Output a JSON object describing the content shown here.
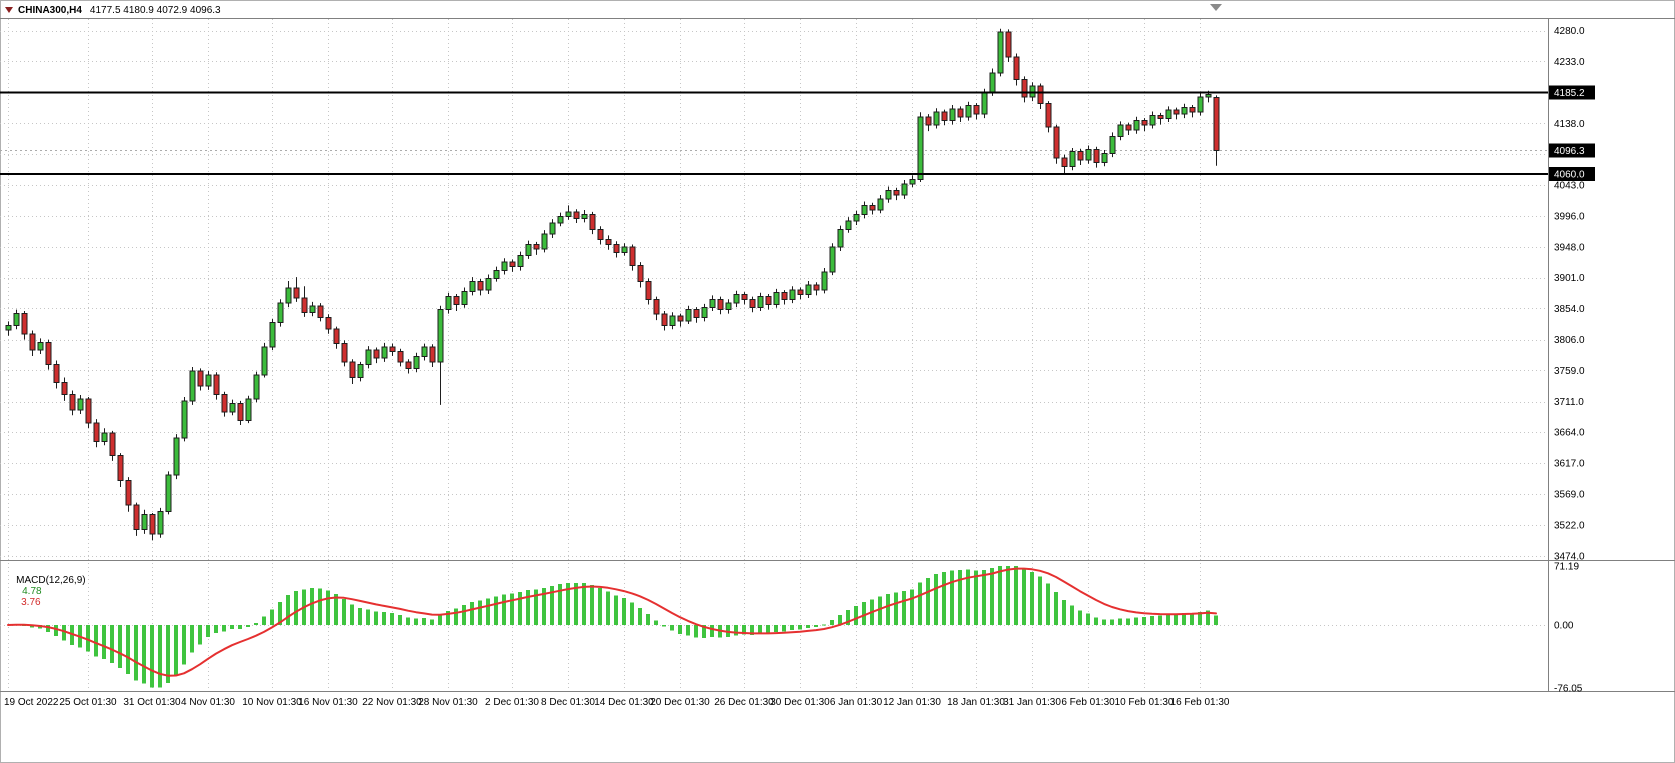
{
  "header": {
    "symbol": "CHINA300,H4",
    "ohlc": "4177.5 4180.9 4072.9 4096.3"
  },
  "colors": {
    "up": "#3CBC3C",
    "down": "#CE2F2F",
    "outline": "#1E1E1E",
    "grid": "#C6C6C6",
    "hist": "#3FC43F",
    "signal": "#E53030",
    "hline": "#000000",
    "axis_line": "#808080",
    "bid_line": "#ABABAB",
    "tag_bg": "#000000",
    "tag_text": "#FFFFFF",
    "text": "#000000",
    "shift_marker": "#8A8A8A"
  },
  "chart_data": {
    "type": "candlestick",
    "title": "CHINA300,H4",
    "symbol": "CHINA300",
    "timeframe": "H4",
    "current_ohlc": {
      "open": 4177.5,
      "high": 4180.9,
      "low": 4072.9,
      "close": 4096.3
    },
    "candles": [
      [
        3821,
        3834,
        3812,
        3828
      ],
      [
        3828,
        3852,
        3822,
        3846
      ],
      [
        3846,
        3850,
        3806,
        3815
      ],
      [
        3815,
        3820,
        3781,
        3790
      ],
      [
        3790,
        3808,
        3784,
        3802
      ],
      [
        3802,
        3806,
        3760,
        3768
      ],
      [
        3768,
        3774,
        3731,
        3740
      ],
      [
        3740,
        3748,
        3712,
        3722
      ],
      [
        3722,
        3728,
        3690,
        3698
      ],
      [
        3698,
        3721,
        3692,
        3715
      ],
      [
        3715,
        3718,
        3670,
        3678
      ],
      [
        3678,
        3684,
        3641,
        3650
      ],
      [
        3650,
        3670,
        3644,
        3663
      ],
      [
        3663,
        3666,
        3620,
        3628
      ],
      [
        3628,
        3632,
        3580,
        3590
      ],
      [
        3590,
        3595,
        3542,
        3552
      ],
      [
        3552,
        3556,
        3505,
        3515
      ],
      [
        3515,
        3545,
        3508,
        3538
      ],
      [
        3538,
        3540,
        3498,
        3508
      ],
      [
        3508,
        3548,
        3502,
        3542
      ],
      [
        3542,
        3604,
        3538,
        3598
      ],
      [
        3598,
        3661,
        3592,
        3655
      ],
      [
        3655,
        3718,
        3650,
        3712
      ],
      [
        3712,
        3764,
        3706,
        3758
      ],
      [
        3758,
        3762,
        3728,
        3735
      ],
      [
        3735,
        3758,
        3729,
        3752
      ],
      [
        3752,
        3756,
        3714,
        3722
      ],
      [
        3722,
        3726,
        3688,
        3695
      ],
      [
        3695,
        3714,
        3690,
        3708
      ],
      [
        3708,
        3712,
        3675,
        3682
      ],
      [
        3682,
        3720,
        3678,
        3715
      ],
      [
        3715,
        3757,
        3710,
        3752
      ],
      [
        3752,
        3801,
        3748,
        3795
      ],
      [
        3795,
        3838,
        3790,
        3832
      ],
      [
        3832,
        3868,
        3826,
        3862
      ],
      [
        3862,
        3896,
        3856,
        3885
      ],
      [
        3885,
        3902,
        3864,
        3870
      ],
      [
        3870,
        3888,
        3841,
        3848
      ],
      [
        3848,
        3864,
        3842,
        3858
      ],
      [
        3858,
        3862,
        3834,
        3840
      ],
      [
        3840,
        3845,
        3815,
        3822
      ],
      [
        3822,
        3826,
        3792,
        3800
      ],
      [
        3800,
        3805,
        3765,
        3772
      ],
      [
        3772,
        3776,
        3738,
        3748
      ],
      [
        3748,
        3772,
        3742,
        3768
      ],
      [
        3768,
        3796,
        3762,
        3790
      ],
      [
        3790,
        3794,
        3770,
        3778
      ],
      [
        3778,
        3801,
        3772,
        3795
      ],
      [
        3795,
        3800,
        3781,
        3788
      ],
      [
        3788,
        3792,
        3765,
        3772
      ],
      [
        3772,
        3776,
        3754,
        3762
      ],
      [
        3762,
        3786,
        3756,
        3780
      ],
      [
        3780,
        3800,
        3774,
        3795
      ],
      [
        3795,
        3799,
        3764,
        3772
      ],
      [
        3772,
        3858,
        3706,
        3852
      ],
      [
        3852,
        3878,
        3846,
        3872
      ],
      [
        3872,
        3876,
        3850,
        3860
      ],
      [
        3860,
        3886,
        3855,
        3880
      ],
      [
        3880,
        3902,
        3874,
        3895
      ],
      [
        3895,
        3899,
        3874,
        3882
      ],
      [
        3882,
        3906,
        3876,
        3900
      ],
      [
        3900,
        3918,
        3895,
        3912
      ],
      [
        3912,
        3931,
        3906,
        3925
      ],
      [
        3925,
        3929,
        3910,
        3918
      ],
      [
        3918,
        3941,
        3912,
        3935
      ],
      [
        3935,
        3958,
        3930,
        3952
      ],
      [
        3952,
        3956,
        3936,
        3945
      ],
      [
        3945,
        3974,
        3940,
        3968
      ],
      [
        3968,
        3991,
        3962,
        3985
      ],
      [
        3985,
        4001,
        3980,
        3995
      ],
      [
        3995,
        4012,
        3990,
        4002
      ],
      [
        4002,
        4006,
        3985,
        3992
      ],
      [
        3992,
        4005,
        3986,
        3998
      ],
      [
        3998,
        4002,
        3968,
        3975
      ],
      [
        3975,
        3980,
        3952,
        3960
      ],
      [
        3960,
        3966,
        3944,
        3952
      ],
      [
        3952,
        3957,
        3932,
        3940
      ],
      [
        3940,
        3954,
        3935,
        3948
      ],
      [
        3948,
        3952,
        3912,
        3920
      ],
      [
        3920,
        3925,
        3886,
        3895
      ],
      [
        3895,
        3900,
        3860,
        3868
      ],
      [
        3868,
        3872,
        3836,
        3845
      ],
      [
        3845,
        3850,
        3820,
        3828
      ],
      [
        3828,
        3848,
        3822,
        3842
      ],
      [
        3842,
        3846,
        3826,
        3835
      ],
      [
        3835,
        3858,
        3830,
        3852
      ],
      [
        3852,
        3856,
        3832,
        3840
      ],
      [
        3840,
        3861,
        3834,
        3855
      ],
      [
        3855,
        3874,
        3850,
        3868
      ],
      [
        3868,
        3872,
        3845,
        3852
      ],
      [
        3852,
        3868,
        3846,
        3862
      ],
      [
        3862,
        3881,
        3856,
        3875
      ],
      [
        3875,
        3879,
        3860,
        3868
      ],
      [
        3868,
        3872,
        3848,
        3855
      ],
      [
        3855,
        3878,
        3850,
        3872
      ],
      [
        3872,
        3876,
        3852,
        3860
      ],
      [
        3860,
        3884,
        3855,
        3878
      ],
      [
        3878,
        3882,
        3860,
        3868
      ],
      [
        3868,
        3888,
        3862,
        3882
      ],
      [
        3882,
        3886,
        3868,
        3875
      ],
      [
        3875,
        3896,
        3870,
        3890
      ],
      [
        3890,
        3894,
        3874,
        3882
      ],
      [
        3882,
        3916,
        3877,
        3910
      ],
      [
        3910,
        3954,
        3905,
        3948
      ],
      [
        3948,
        3981,
        3942,
        3975
      ],
      [
        3975,
        3994,
        3970,
        3988
      ],
      [
        3988,
        4004,
        3982,
        3998
      ],
      [
        3998,
        4018,
        3992,
        4012
      ],
      [
        4012,
        4016,
        3998,
        4005
      ],
      [
        4005,
        4028,
        4000,
        4022
      ],
      [
        4022,
        4041,
        4016,
        4035
      ],
      [
        4035,
        4039,
        4020,
        4028
      ],
      [
        4028,
        4051,
        4022,
        4045
      ],
      [
        4045,
        4058,
        4040,
        4052
      ],
      [
        4052,
        4155,
        4048,
        4148
      ],
      [
        4148,
        4152,
        4126,
        4135
      ],
      [
        4135,
        4161,
        4130,
        4155
      ],
      [
        4155,
        4159,
        4135,
        4142
      ],
      [
        4142,
        4166,
        4136,
        4160
      ],
      [
        4160,
        4164,
        4140,
        4148
      ],
      [
        4148,
        4171,
        4142,
        4165
      ],
      [
        4165,
        4169,
        4144,
        4152
      ],
      [
        4152,
        4191,
        4146,
        4185
      ],
      [
        4185,
        4222,
        4180,
        4215
      ],
      [
        4215,
        4283,
        4210,
        4278
      ],
      [
        4278,
        4282,
        4232,
        4240
      ],
      [
        4240,
        4245,
        4196,
        4205
      ],
      [
        4205,
        4210,
        4170,
        4178
      ],
      [
        4178,
        4201,
        4172,
        4195
      ],
      [
        4195,
        4199,
        4160,
        4168
      ],
      [
        4168,
        4172,
        4124,
        4132
      ],
      [
        4132,
        4136,
        4076,
        4085
      ],
      [
        4085,
        4090,
        4061,
        4072
      ],
      [
        4072,
        4100,
        4066,
        4095
      ],
      [
        4095,
        4099,
        4074,
        4082
      ],
      [
        4082,
        4104,
        4076,
        4098
      ],
      [
        4098,
        4102,
        4070,
        4078
      ],
      [
        4078,
        4097,
        4072,
        4092
      ],
      [
        4092,
        4124,
        4086,
        4118
      ],
      [
        4118,
        4141,
        4112,
        4135
      ],
      [
        4135,
        4139,
        4120,
        4128
      ],
      [
        4128,
        4148,
        4122,
        4142
      ],
      [
        4142,
        4146,
        4126,
        4135
      ],
      [
        4135,
        4156,
        4130,
        4150
      ],
      [
        4150,
        4154,
        4136,
        4145
      ],
      [
        4145,
        4164,
        4140,
        4158
      ],
      [
        4158,
        4162,
        4144,
        4152
      ],
      [
        4152,
        4168,
        4146,
        4162
      ],
      [
        4162,
        4166,
        4147,
        4155
      ],
      [
        4155,
        4184,
        4150,
        4178
      ],
      [
        4178,
        4188,
        4170,
        4182
      ],
      [
        4177.5,
        4180.9,
        4072.9,
        4096.3
      ]
    ],
    "x_labels": [
      {
        "text": "19 Oct 2022",
        "i": 0
      },
      {
        "text": "25 Oct 01:30",
        "i": 10
      },
      {
        "text": "31 Oct 01:30",
        "i": 18
      },
      {
        "text": "4 Nov 01:30",
        "i": 25
      },
      {
        "text": "10 Nov 01:30",
        "i": 33
      },
      {
        "text": "16 Nov 01:30",
        "i": 40
      },
      {
        "text": "22 Nov 01:30",
        "i": 48
      },
      {
        "text": "28 Nov 01:30",
        "i": 55
      },
      {
        "text": "2 Dec 01:30",
        "i": 63
      },
      {
        "text": "8 Dec 01:30",
        "i": 70
      },
      {
        "text": "14 Dec 01:30",
        "i": 77
      },
      {
        "text": "20 Dec 01:30",
        "i": 84
      },
      {
        "text": "26 Dec 01:30",
        "i": 92
      },
      {
        "text": "30 Dec 01:30",
        "i": 99
      },
      {
        "text": "6 Jan 01:30",
        "i": 106
      },
      {
        "text": "12 Jan 01:30",
        "i": 113
      },
      {
        "text": "18 Jan 01:30",
        "i": 121
      },
      {
        "text": "31 Jan 01:30",
        "i": 128
      },
      {
        "text": "6 Feb 01:30",
        "i": 135
      },
      {
        "text": "10 Feb 01:30",
        "i": 142
      },
      {
        "text": "16 Feb 01:30",
        "i": 149
      }
    ],
    "y_axis": {
      "labels": [
        "4280.0",
        "4233.0",
        "4138.0",
        "4043.0",
        "3996.0",
        "3948.0",
        "3901.0",
        "3854.0",
        "3806.0",
        "3759.0",
        "3711.0",
        "3664.0",
        "3617.0",
        "3569.0",
        "3522.0",
        "3474.0"
      ],
      "gridline_only_values": [
        4186,
        4091
      ],
      "price_range": [
        3471,
        4298
      ]
    },
    "hlines": [
      4185.2,
      4060.0
    ],
    "bid_price": 4096.3,
    "price_tags": [
      {
        "text": "4185.2",
        "value": 4185.2
      },
      {
        "text": "4096.3",
        "value": 4096.3
      },
      {
        "text": "4060.0",
        "value": 4060.0
      }
    ],
    "macd": {
      "label": "MACD(12,26,9)",
      "macd_value": "4.78",
      "signal_value": "3.76",
      "fast": 12,
      "slow": 26,
      "signal_period": 9,
      "axis_labels": [
        {
          "text": "71.19",
          "value": 71.19
        },
        {
          "text": "0.00",
          "value": 0
        },
        {
          "text": "-76.05",
          "value": -76.05
        }
      ],
      "range": [
        -76.05,
        71.19
      ]
    }
  }
}
